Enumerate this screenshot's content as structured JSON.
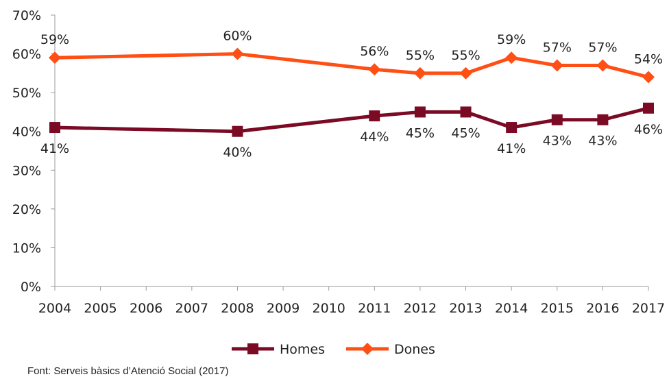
{
  "chart_data": {
    "type": "line",
    "categories": [
      "2004",
      "2005",
      "2006",
      "2007",
      "2008",
      "2009",
      "2010",
      "2011",
      "2012",
      "2013",
      "2014",
      "2015",
      "2016",
      "2017"
    ],
    "ylim": [
      0,
      70
    ],
    "yticks": [
      "0%",
      "10%",
      "20%",
      "30%",
      "40%",
      "50%",
      "60%",
      "70%"
    ],
    "grid": false,
    "legend": "bottom",
    "series": [
      {
        "name": "Homes",
        "color": "#7b0a25",
        "marker": "square",
        "points": [
          {
            "x": "2004",
            "y": 41,
            "label": "41%"
          },
          {
            "x": "2008",
            "y": 40,
            "label": "40%"
          },
          {
            "x": "2011",
            "y": 44,
            "label": "44%"
          },
          {
            "x": "2012",
            "y": 45,
            "label": "45%"
          },
          {
            "x": "2013",
            "y": 45,
            "label": "45%"
          },
          {
            "x": "2014",
            "y": 41,
            "label": "41%"
          },
          {
            "x": "2015",
            "y": 43,
            "label": "43%"
          },
          {
            "x": "2016",
            "y": 43,
            "label": "43%"
          },
          {
            "x": "2017",
            "y": 46,
            "label": "46%"
          }
        ]
      },
      {
        "name": "Dones",
        "color": "#ff4f14",
        "marker": "diamond",
        "points": [
          {
            "x": "2004",
            "y": 59,
            "label": "59%"
          },
          {
            "x": "2008",
            "y": 60,
            "label": "60%"
          },
          {
            "x": "2011",
            "y": 56,
            "label": "56%"
          },
          {
            "x": "2012",
            "y": 55,
            "label": "55%"
          },
          {
            "x": "2013",
            "y": 55,
            "label": "55%"
          },
          {
            "x": "2014",
            "y": 59,
            "label": "59%"
          },
          {
            "x": "2015",
            "y": 57,
            "label": "57%"
          },
          {
            "x": "2016",
            "y": 57,
            "label": "57%"
          },
          {
            "x": "2017",
            "y": 54,
            "label": "54%"
          }
        ]
      }
    ]
  },
  "source": "Font: Serveis bàsics d’Atenció Social (2017)"
}
